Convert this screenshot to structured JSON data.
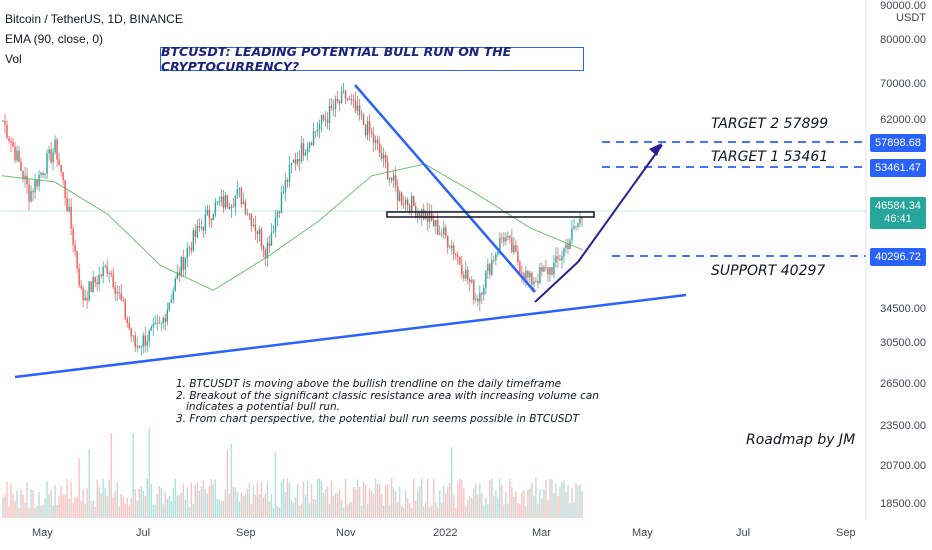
{
  "header": {
    "symbol_line": "Bitcoin / TetherUS, 1D, BINANCE",
    "ema_line": "EMA (90, close, 0)",
    "vol_line": "Vol"
  },
  "callout_title": "BTCUSDT: LEADING POTENTIAL BULL RUN ON THE CRYPTOCURRENCY?",
  "notes": [
    "1. BTCUSDT is moving above the bullish trendline on the daily timeframe",
    "2. Breakout of the significant classic resistance area with increasing volume can",
    "   indicates a potential bull run.",
    "3. From chart perspective, the potential bull run seems possible in BTCUSDT"
  ],
  "labels": {
    "target2": "TARGET 2  57899",
    "target1": "TARGET 1  53461",
    "support": "SUPPORT 40297",
    "roadmap": "Roadmap by JM"
  },
  "axis": {
    "currency": "USDT",
    "y_ticks": [
      "90000.00",
      "80000.00",
      "70000.00",
      "62000.00",
      "34500.00",
      "30500.00",
      "26500.00",
      "23500.00",
      "20700.00",
      "18500.00"
    ],
    "x_ticks": [
      "May",
      "Jul",
      "Sep",
      "Nov",
      "2022",
      "Mar",
      "May",
      "Jul",
      "Sep"
    ]
  },
  "price_tags": {
    "target2": "57898.68",
    "target1": "53461.47",
    "current": "46584.34",
    "countdown": "46:41",
    "support": "40296.72"
  },
  "colors": {
    "up": "#26a69a",
    "down": "#ef5350",
    "trend": "#2962ff",
    "arrow": "#311b92",
    "ema": "#4caf50"
  },
  "chart_data": {
    "type": "line",
    "title": "BTCUSDT: LEADING POTENTIAL BULL RUN ON THE CRYPTOCURRENCY?",
    "ylim": [
      18000,
      92000
    ],
    "y_scale": "log",
    "series": [
      {
        "x": [
          "Apr",
          "May",
          "May",
          "Jun",
          "Jun",
          "Jul",
          "Jul",
          "Aug",
          "Aug",
          "Sep",
          "Sep",
          "Oct",
          "Oct",
          "Nov",
          "Nov",
          "Dec",
          "Dec",
          "Jan",
          "Jan",
          "Feb",
          "Feb",
          "Mar",
          "Mar"
        ],
        "values": [
          63000,
          50000,
          58000,
          36000,
          40000,
          31000,
          33000,
          42000,
          48000,
          50000,
          42000,
          55000,
          62000,
          68000,
          60000,
          50000,
          47000,
          43000,
          36000,
          44000,
          38000,
          40000,
          46584
        ]
      },
      {
        "name": "EMA (90, close, 0)",
        "x": [
          "Apr",
          "May",
          "Jun",
          "Jul",
          "Aug",
          "Sep",
          "Oct",
          "Nov",
          "Dec",
          "Jan",
          "Feb",
          "Mar"
        ],
        "values": [
          53000,
          52000,
          47000,
          40000,
          37000,
          41000,
          46000,
          53000,
          55000,
          50000,
          45000,
          42000
        ]
      }
    ],
    "levels": [
      {
        "label": "TARGET 2  57899",
        "value": 57899
      },
      {
        "label": "TARGET 1  53461",
        "value": 53461
      },
      {
        "label": "SUPPORT 40297",
        "value": 40297
      }
    ],
    "last_price": 46584.34,
    "grid": false
  }
}
